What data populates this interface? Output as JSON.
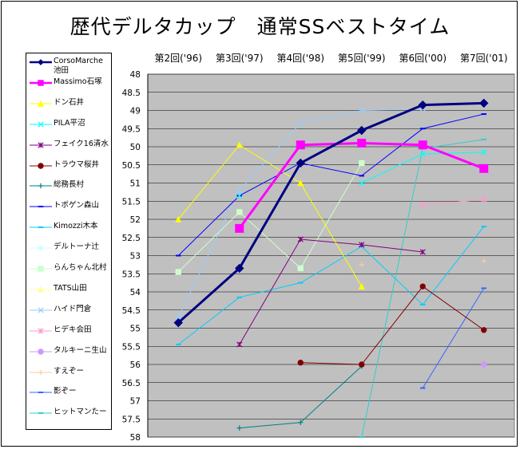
{
  "chart_data": {
    "type": "line",
    "title": "歴代デルタカップ　通常SSベストタイム",
    "categories": [
      "第2回('96)",
      "第3回('97)",
      "第4回('98)",
      "第5回('99)",
      "第6回('00)",
      "第7回('01)"
    ],
    "ylim": [
      48,
      58
    ],
    "y_reversed": true,
    "y_ticks": [
      "48",
      "48.5",
      "49",
      "49.5",
      "50",
      "50.5",
      "51",
      "51.5",
      "52",
      "52.5",
      "53",
      "53.5",
      "54",
      "54.5",
      "55",
      "55.5",
      "56",
      "56.5",
      "57",
      "57.5",
      "58"
    ],
    "plot_background": "#c0c0c0",
    "grid": "horizontal",
    "legend_position": "left",
    "series": [
      {
        "name": "CorsoMarche\n池田",
        "color": "#000080",
        "marker": "diamond",
        "width": 3,
        "values": [
          54.85,
          53.35,
          50.45,
          49.55,
          48.85,
          48.8
        ]
      },
      {
        "name": "Massimo石塚",
        "color": "#ff00ff",
        "marker": "square",
        "width": 3,
        "values": [
          null,
          52.25,
          49.95,
          49.9,
          49.95,
          50.6
        ]
      },
      {
        "name": "ドン石井",
        "color": "#ffff00",
        "marker": "triangle",
        "width": 1,
        "values": [
          52.0,
          49.95,
          51.0,
          53.85,
          null,
          null
        ]
      },
      {
        "name": "PILA平沼",
        "color": "#00ffff",
        "marker": "x",
        "width": 1,
        "values": [
          null,
          51.35,
          null,
          51.0,
          50.2,
          50.15
        ]
      },
      {
        "name": "フェイク16清水",
        "color": "#800080",
        "marker": "star",
        "width": 1,
        "values": [
          null,
          55.45,
          52.55,
          52.7,
          52.9,
          null
        ]
      },
      {
        "name": "トラウマ桜井",
        "color": "#800000",
        "marker": "circle",
        "width": 1,
        "values": [
          null,
          null,
          55.95,
          56.0,
          53.85,
          55.05
        ]
      },
      {
        "name": "総務長村",
        "color": "#008080",
        "marker": "plus",
        "width": 1,
        "values": [
          null,
          57.75,
          57.6,
          56.05,
          null,
          null
        ]
      },
      {
        "name": "トポゲン森山",
        "color": "#0000ff",
        "marker": "dash",
        "width": 1,
        "values": [
          53.0,
          51.35,
          50.45,
          50.8,
          49.5,
          49.1
        ]
      },
      {
        "name": "Kimozzi木本",
        "color": "#00ccff",
        "marker": "dash",
        "width": 1,
        "values": [
          55.45,
          54.15,
          53.75,
          52.75,
          54.35,
          52.2
        ]
      },
      {
        "name": "デルトーナ辻",
        "color": "#ccffff",
        "marker": "diamond",
        "width": 1,
        "values": [
          null,
          null,
          null,
          null,
          null,
          null
        ]
      },
      {
        "name": "らんちゃん北村",
        "color": "#ccffcc",
        "marker": "square",
        "width": 1,
        "values": [
          53.45,
          51.8,
          53.35,
          50.45,
          null,
          null
        ]
      },
      {
        "name": "TATS山田",
        "color": "#ffff99",
        "marker": "triangle",
        "width": 1,
        "values": [
          null,
          null,
          null,
          null,
          null,
          null
        ]
      },
      {
        "name": "ハイド門倉",
        "color": "#99ccff",
        "marker": "x",
        "width": 1,
        "values": [
          54.7,
          51.2,
          49.35,
          49.0,
          48.95,
          null
        ]
      },
      {
        "name": "ヒデキ会田",
        "color": "#ff99cc",
        "marker": "star",
        "width": 1,
        "values": [
          null,
          null,
          null,
          null,
          51.6,
          51.45
        ]
      },
      {
        "name": "タルキーニ生山",
        "color": "#cc99ff",
        "marker": "circle",
        "width": 1,
        "values": [
          null,
          null,
          null,
          null,
          null,
          56.0
        ]
      },
      {
        "name": "すえぞー",
        "color": "#ffcc99",
        "marker": "plus",
        "width": 1,
        "values": [
          null,
          null,
          null,
          53.25,
          null,
          53.15
        ]
      },
      {
        "name": "影ぞー",
        "color": "#3366ff",
        "marker": "dash",
        "width": 1,
        "values": [
          null,
          null,
          null,
          null,
          56.65,
          53.9
        ]
      },
      {
        "name": "ヒットマンたー",
        "color": "#33cccc",
        "marker": "dash",
        "width": 1,
        "values": [
          null,
          null,
          null,
          58.0,
          50.05,
          49.8
        ]
      }
    ]
  }
}
